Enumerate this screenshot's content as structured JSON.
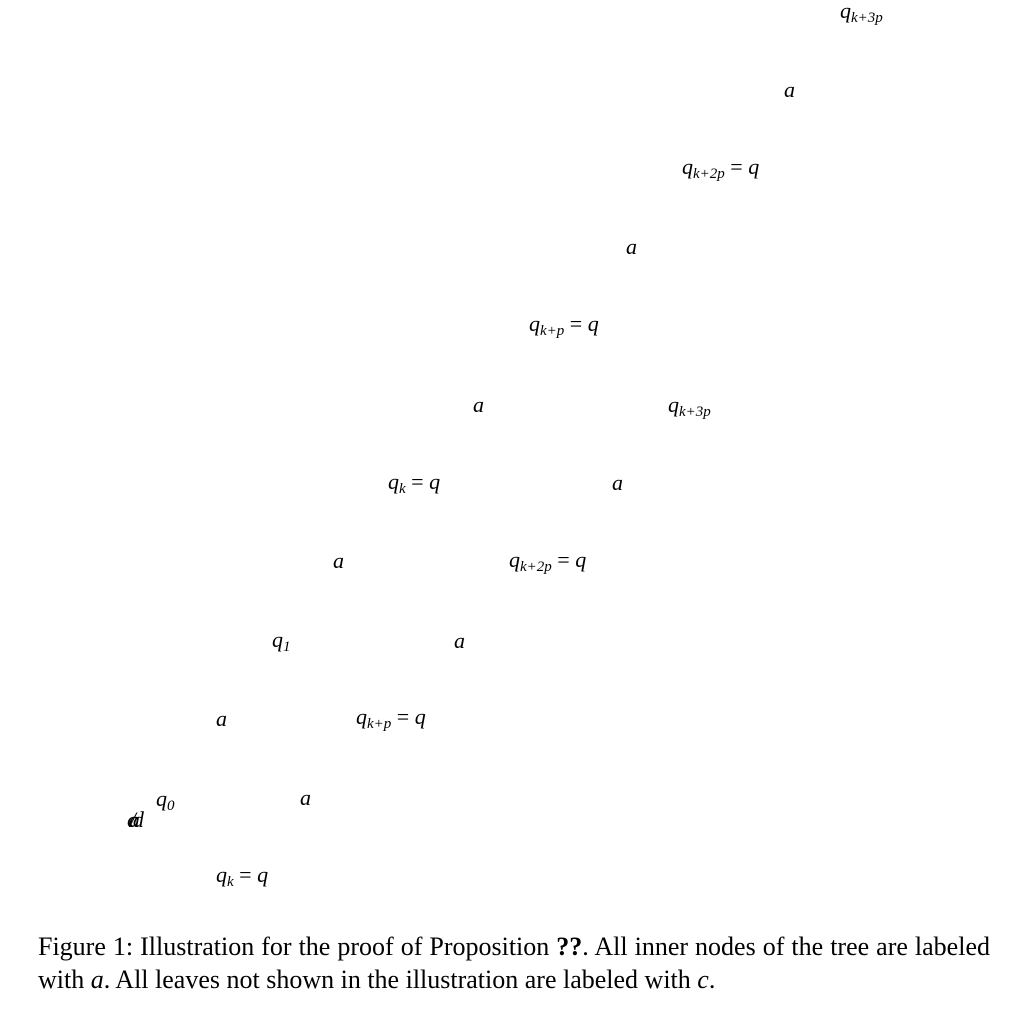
{
  "nodes": [
    {
      "id": "n1",
      "base": "q",
      "sub": "k+3p",
      "eq": ""
    },
    {
      "id": "n2",
      "base": "a",
      "sub": "",
      "eq": ""
    },
    {
      "id": "n3",
      "base": "q",
      "sub": "k+2p",
      "eq": "= q"
    },
    {
      "id": "n4",
      "base": "a",
      "sub": "",
      "eq": ""
    },
    {
      "id": "n5",
      "base": "q",
      "sub": "k+p",
      "eq": "= q"
    },
    {
      "id": "n6",
      "base": "a",
      "sub": "",
      "eq": ""
    },
    {
      "id": "n7",
      "base": "q",
      "sub": "k+3p",
      "eq": ""
    },
    {
      "id": "n8",
      "base": "q",
      "sub": "k",
      "eq": "= q"
    },
    {
      "id": "n9",
      "base": "a",
      "sub": "",
      "eq": ""
    },
    {
      "id": "n10",
      "base": "a",
      "sub": "",
      "eq": ""
    },
    {
      "id": "n11",
      "base": "q",
      "sub": "k+2p",
      "eq": "= q"
    },
    {
      "id": "n12",
      "base": "q",
      "sub": "1",
      "eq": ""
    },
    {
      "id": "n13",
      "base": "a",
      "sub": "",
      "eq": ""
    },
    {
      "id": "n14",
      "base": "a",
      "sub": "",
      "eq": ""
    },
    {
      "id": "n15",
      "base": "q",
      "sub": "k+p",
      "eq": "= q"
    },
    {
      "id": "n16",
      "base": "q",
      "sub": "0",
      "eq": ""
    },
    {
      "id": "n17",
      "base": "a",
      "sub": "",
      "eq": ""
    },
    {
      "id": "n18",
      "base": "q",
      "sub": "k",
      "eq": "= q"
    }
  ],
  "overlap_glyphs": "c/ad",
  "caption": {
    "prefix": "Figure 1: Illustration for the proof of Proposition ",
    "ref": "??",
    "middle": ". All inner nodes of the tree are labeled with ",
    "var_a": "a",
    "after_a": ". All leaves not shown in the illustration are labeled with ",
    "var_c": "c",
    "end": "."
  }
}
